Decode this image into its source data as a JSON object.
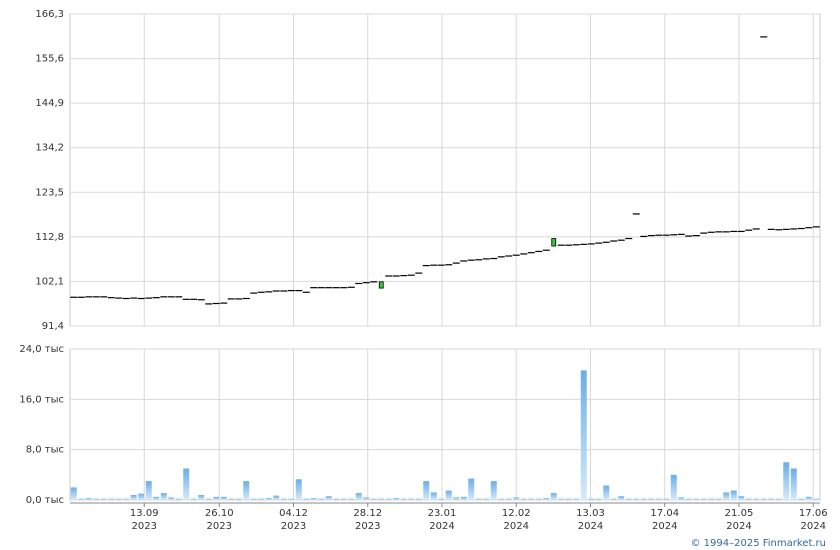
{
  "chart_data": [
    {
      "type": "candlestick",
      "ylim": [
        91.4,
        166.3
      ],
      "yticks": [
        {
          "value": 91.4,
          "label": "91,4"
        },
        {
          "value": 102.1,
          "label": "102,1"
        },
        {
          "value": 112.8,
          "label": "112,8"
        },
        {
          "value": 123.5,
          "label": "123,5"
        },
        {
          "value": 134.2,
          "label": "134,2"
        },
        {
          "value": 144.9,
          "label": "144,9"
        },
        {
          "value": 155.6,
          "label": "155,6"
        },
        {
          "value": 166.3,
          "label": "166,3"
        }
      ],
      "grid": true,
      "up_color": "#33cc33",
      "color": "#000000",
      "open": [
        98.3,
        98.3,
        98.4,
        98.4,
        98.4,
        98.2,
        98.1,
        98.0,
        98.1,
        98.0,
        98.1,
        98.2,
        98.4,
        98.4,
        98.4,
        97.8,
        97.8,
        97.7,
        96.7,
        96.8,
        96.9,
        97.9,
        97.9,
        98.0,
        99.3,
        99.5,
        99.6,
        99.8,
        99.8,
        99.9,
        99.9,
        99.5,
        100.6,
        100.6,
        100.6,
        100.6,
        100.6,
        100.7,
        101.6,
        101.8,
        102.0,
        100.5,
        103.4,
        103.4,
        103.5,
        103.6,
        104.1,
        105.9,
        106.0,
        106.0,
        106.1,
        106.5,
        107.0,
        107.2,
        107.3,
        107.5,
        107.6,
        108.0,
        108.2,
        108.4,
        108.7,
        109.0,
        109.3,
        109.6,
        110.6,
        110.8,
        110.8,
        110.9,
        111.0,
        111.1,
        111.3,
        111.5,
        111.8,
        112.0,
        112.4,
        118.3,
        112.9,
        113.1,
        113.2,
        113.2,
        113.3,
        113.4,
        113.0,
        113.1,
        113.7,
        113.9,
        114.0,
        114.0,
        114.1,
        114.1,
        114.4,
        114.7,
        160.8,
        114.6,
        114.5,
        114.6,
        114.7,
        114.8,
        115.0,
        115.2
      ],
      "close": [
        98.3,
        98.3,
        98.4,
        98.4,
        98.4,
        98.2,
        98.1,
        98.0,
        98.1,
        98.0,
        98.1,
        98.2,
        98.4,
        98.4,
        98.4,
        97.8,
        97.8,
        97.7,
        96.7,
        96.8,
        96.9,
        97.9,
        97.9,
        98.0,
        99.3,
        99.5,
        99.6,
        99.8,
        99.8,
        99.9,
        99.9,
        99.5,
        100.6,
        100.6,
        100.6,
        100.6,
        100.6,
        100.7,
        101.6,
        101.8,
        102.0,
        102.0,
        103.4,
        103.4,
        103.5,
        103.6,
        104.1,
        105.9,
        106.0,
        106.0,
        106.1,
        106.5,
        107.0,
        107.2,
        107.3,
        107.5,
        107.6,
        108.0,
        108.2,
        108.4,
        108.7,
        109.0,
        109.3,
        109.6,
        112.4,
        110.8,
        110.8,
        110.9,
        111.0,
        111.1,
        111.3,
        111.5,
        111.8,
        112.0,
        112.4,
        118.3,
        112.9,
        113.1,
        113.2,
        113.2,
        113.3,
        113.4,
        113.0,
        113.1,
        113.7,
        113.9,
        114.0,
        114.0,
        114.1,
        114.1,
        114.4,
        114.7,
        160.8,
        114.6,
        114.5,
        114.6,
        114.7,
        114.8,
        115.0,
        115.2
      ]
    },
    {
      "type": "bar",
      "ylim": [
        0,
        24
      ],
      "yticks": [
        {
          "value": 0,
          "label": "0,0 тыс"
        },
        {
          "value": 8,
          "label": "8,0 тыс"
        },
        {
          "value": 16,
          "label": "16,0 тыс"
        },
        {
          "value": 24,
          "label": "24,0 тыс"
        }
      ],
      "grid": true,
      "color": "#7ab8ea",
      "values": [
        2.0,
        0.2,
        0.3,
        0.2,
        0.2,
        0.2,
        0.2,
        0.2,
        0.8,
        1.0,
        3.0,
        0.5,
        1.1,
        0.4,
        0.2,
        5.0,
        0.2,
        0.8,
        0.2,
        0.5,
        0.5,
        0.2,
        0.2,
        3.0,
        0.2,
        0.2,
        0.3,
        0.7,
        0.2,
        0.2,
        3.3,
        0.2,
        0.3,
        0.2,
        0.6,
        0.2,
        0.2,
        0.2,
        1.1,
        0.4,
        0.2,
        0.2,
        0.2,
        0.3,
        0.2,
        0.2,
        0.2,
        3.0,
        1.2,
        0.2,
        1.5,
        0.4,
        0.5,
        3.4,
        0.2,
        0.2,
        3.0,
        0.2,
        0.2,
        0.4,
        0.2,
        0.2,
        0.2,
        0.3,
        1.1,
        0.2,
        0.2,
        0.2,
        20.6,
        0.2,
        0.2,
        2.3,
        0.2,
        0.6,
        0.2,
        0.2,
        0.2,
        0.2,
        0.2,
        0.2,
        4.0,
        0.4,
        0.2,
        0.2,
        0.2,
        0.2,
        0.2,
        1.2,
        1.5,
        0.6,
        0.2,
        0.2,
        0.2,
        0.2,
        0.2,
        6.0,
        5.0,
        0.2,
        0.5,
        0.2
      ]
    }
  ],
  "x_axis": {
    "xlim": [
      -0.5,
      99.5
    ],
    "xticks": [
      {
        "value": 9.4,
        "label": "13.09",
        "year": "2023"
      },
      {
        "value": 19.4,
        "label": "26.10",
        "year": "2023"
      },
      {
        "value": 29.3,
        "label": "04.12",
        "year": "2023"
      },
      {
        "value": 39.2,
        "label": "28.12",
        "year": "2023"
      },
      {
        "value": 49.1,
        "label": "23.01",
        "year": "2024"
      },
      {
        "value": 59.0,
        "label": "12.02",
        "year": "2024"
      },
      {
        "value": 68.9,
        "label": "13.03",
        "year": "2024"
      },
      {
        "value": 78.8,
        "label": "17.04",
        "year": "2024"
      },
      {
        "value": 88.7,
        "label": "21.05",
        "year": "2024"
      },
      {
        "value": 98.6,
        "label": "17.06",
        "year": "2024"
      }
    ]
  },
  "copyright": "© 1994–2025 Finmarket.ru"
}
